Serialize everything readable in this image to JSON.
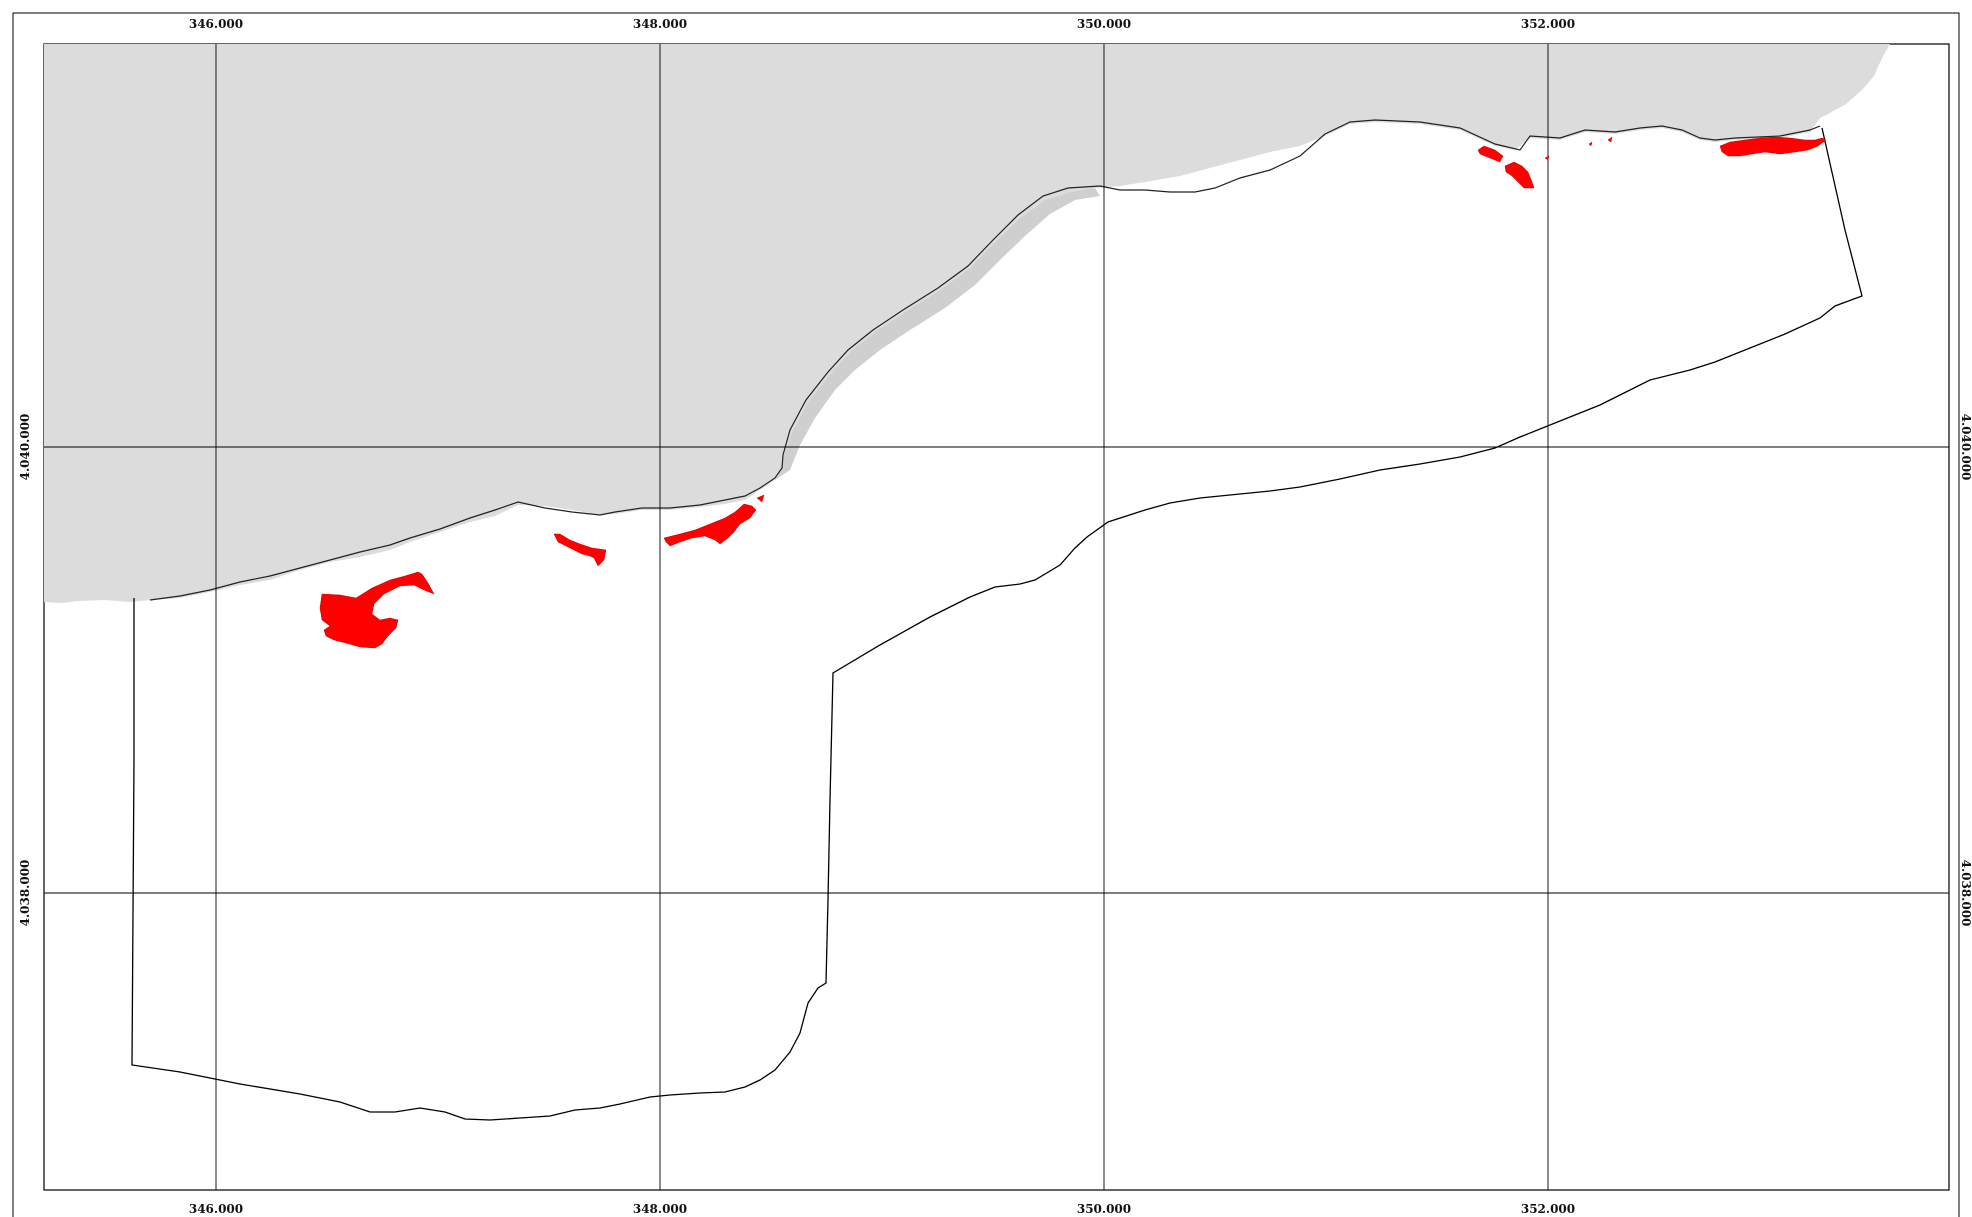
{
  "map": {
    "x_ticks": [
      "346.000",
      "348.000",
      "350.000",
      "352.000"
    ],
    "y_ticks": [
      "4.040.000",
      "4.038.000"
    ],
    "colors": {
      "background": "#ffffff",
      "land": "#dcdcdc",
      "shadow": "#cfcfcf",
      "highlight": "#ff0000",
      "grid": "#000000"
    }
  }
}
